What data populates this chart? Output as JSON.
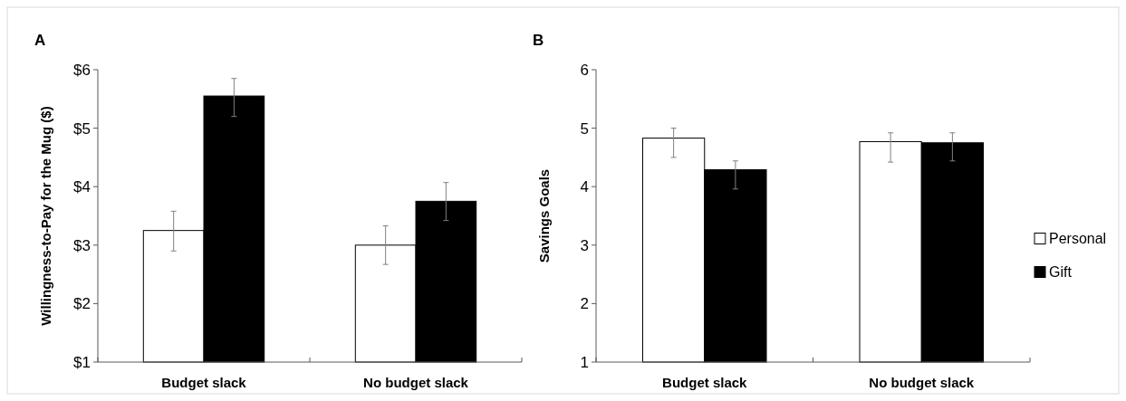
{
  "chart_data": [
    {
      "type": "bar",
      "title": "A",
      "ylabel": "Willingness-to-Pay for the Mug ($)",
      "categories": [
        "Budget slack",
        "No budget slack"
      ],
      "ylim": [
        1,
        6
      ],
      "yticks": [
        {
          "value": 1,
          "label": "$1"
        },
        {
          "value": 2,
          "label": "$2"
        },
        {
          "value": 3,
          "label": "$3"
        },
        {
          "value": 4,
          "label": "$4"
        },
        {
          "value": 5,
          "label": "$5"
        },
        {
          "value": 6,
          "label": "$6"
        }
      ],
      "grid": false,
      "legend": false,
      "series": [
        {
          "color": "#ffffff",
          "values": [
            3.25,
            3.0
          ],
          "errors": [
            [
              2.9,
              3.58
            ],
            [
              2.67,
              3.33
            ]
          ]
        },
        {
          "color": "#000000",
          "values": [
            5.55,
            3.75
          ],
          "errors": [
            [
              5.2,
              5.85
            ],
            [
              3.42,
              4.07
            ]
          ]
        }
      ]
    },
    {
      "type": "bar",
      "title": "B",
      "ylabel": "Savings Goals",
      "categories": [
        "Budget slack",
        "No budget slack"
      ],
      "ylim": [
        1,
        6
      ],
      "yticks": [
        1,
        2,
        3,
        4,
        5,
        6
      ],
      "grid": false,
      "legend": "right",
      "series": [
        {
          "name": "Personal",
          "color": "#ffffff",
          "values": [
            4.83,
            4.77
          ],
          "errors": [
            [
              4.5,
              5.0
            ],
            [
              4.42,
              4.92
            ]
          ]
        },
        {
          "name": "Gift",
          "color": "#000000",
          "values": [
            4.29,
            4.75
          ],
          "errors": [
            [
              3.96,
              4.44
            ],
            [
              4.44,
              4.92
            ]
          ]
        }
      ]
    }
  ]
}
